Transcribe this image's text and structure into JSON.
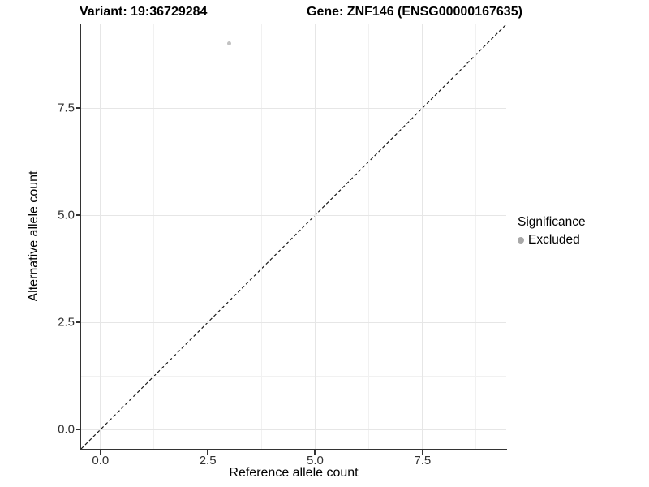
{
  "chart_data": {
    "type": "scatter",
    "titles": {
      "left": "Variant: 19:36729284",
      "right": "Gene: ZNF146 (ENSG00000167635)"
    },
    "xlabel": "Reference allele count",
    "ylabel": "Alternative allele count",
    "x_tick_values": [
      0,
      2.5,
      5,
      7.5
    ],
    "x_tick_labels": [
      "0.0",
      "2.5",
      "5.0",
      "7.5"
    ],
    "y_tick_values": [
      0,
      2.5,
      5,
      7.5
    ],
    "y_tick_labels": [
      "0.0",
      "2.5",
      "5.0",
      "7.5"
    ],
    "x_minor_values": [
      1.25,
      3.75,
      6.25,
      8.75
    ],
    "y_minor_values": [
      1.25,
      3.75,
      6.25,
      8.75
    ],
    "xlim": [
      -0.45,
      9.45
    ],
    "ylim": [
      -0.45,
      9.45
    ],
    "grid": true,
    "legend_position": "right",
    "points": [
      {
        "x": 3,
        "y": 9,
        "series": "Excluded",
        "color": "#c2c2c2",
        "diameter": 5
      }
    ],
    "reference_line": {
      "kind": "identity",
      "style": "dashed",
      "color": "#1a1a1a"
    },
    "legend": {
      "title": "Significance",
      "items": [
        {
          "label": "Excluded",
          "color": "#a8a8a8"
        }
      ]
    },
    "colors": {
      "grid_major": "#e6e6e6",
      "grid_minor": "#f1f1f1",
      "axis": "#333333"
    }
  }
}
